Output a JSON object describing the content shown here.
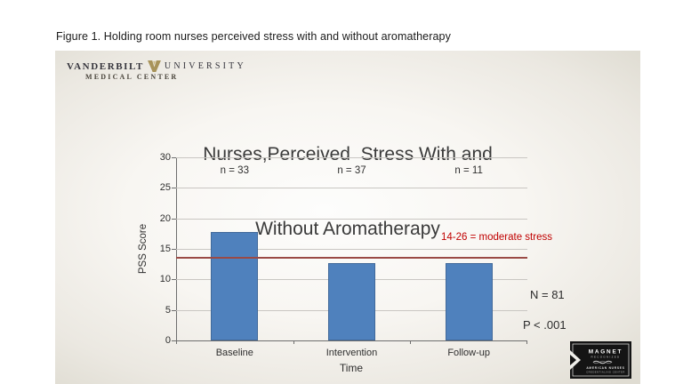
{
  "page": {
    "figure_caption": "Figure 1. Holding room nurses perceived stress with and without aromatherapy"
  },
  "logo": {
    "institution": "VANDERBILT",
    "institution2": "UNIVERSITY",
    "division": "MEDICAL CENTER",
    "colors": {
      "text": "#35343c",
      "gold": "#a8935a"
    }
  },
  "chart_data": {
    "type": "bar",
    "title": "Nurses, Perceived Stress With and Without Aromatherapy",
    "title_lines": [
      "Nurses,Perceived  Stress With and",
      "Without Aromatherapy"
    ],
    "categories": [
      "Baseline",
      "Intervention",
      "Follow-up"
    ],
    "values": [
      17.7,
      12.6,
      12.7
    ],
    "bar_labels": [
      "n = 33",
      "n = 37",
      "n = 11"
    ],
    "xlabel": "Time",
    "ylabel": "PSS Score",
    "ylim": [
      0,
      30
    ],
    "yticks": [
      0,
      5,
      10,
      15,
      20,
      25,
      30
    ],
    "grid": true,
    "legend_position": "none",
    "bar_color": "#4f81bd",
    "reference_line": {
      "value": 13.6,
      "label": "14-26 = moderate stress",
      "line_color": "#9a4a45",
      "label_color": "#c00000"
    },
    "annotations": {
      "sample_size": "N = 81",
      "p_value": "P < .001"
    }
  },
  "badge": {
    "name": "MAGNET",
    "subtitle": "RECOGNIZED",
    "org_line1": "AMERICAN NURSES",
    "org_line2": "CREDENTIALING CENTER"
  }
}
